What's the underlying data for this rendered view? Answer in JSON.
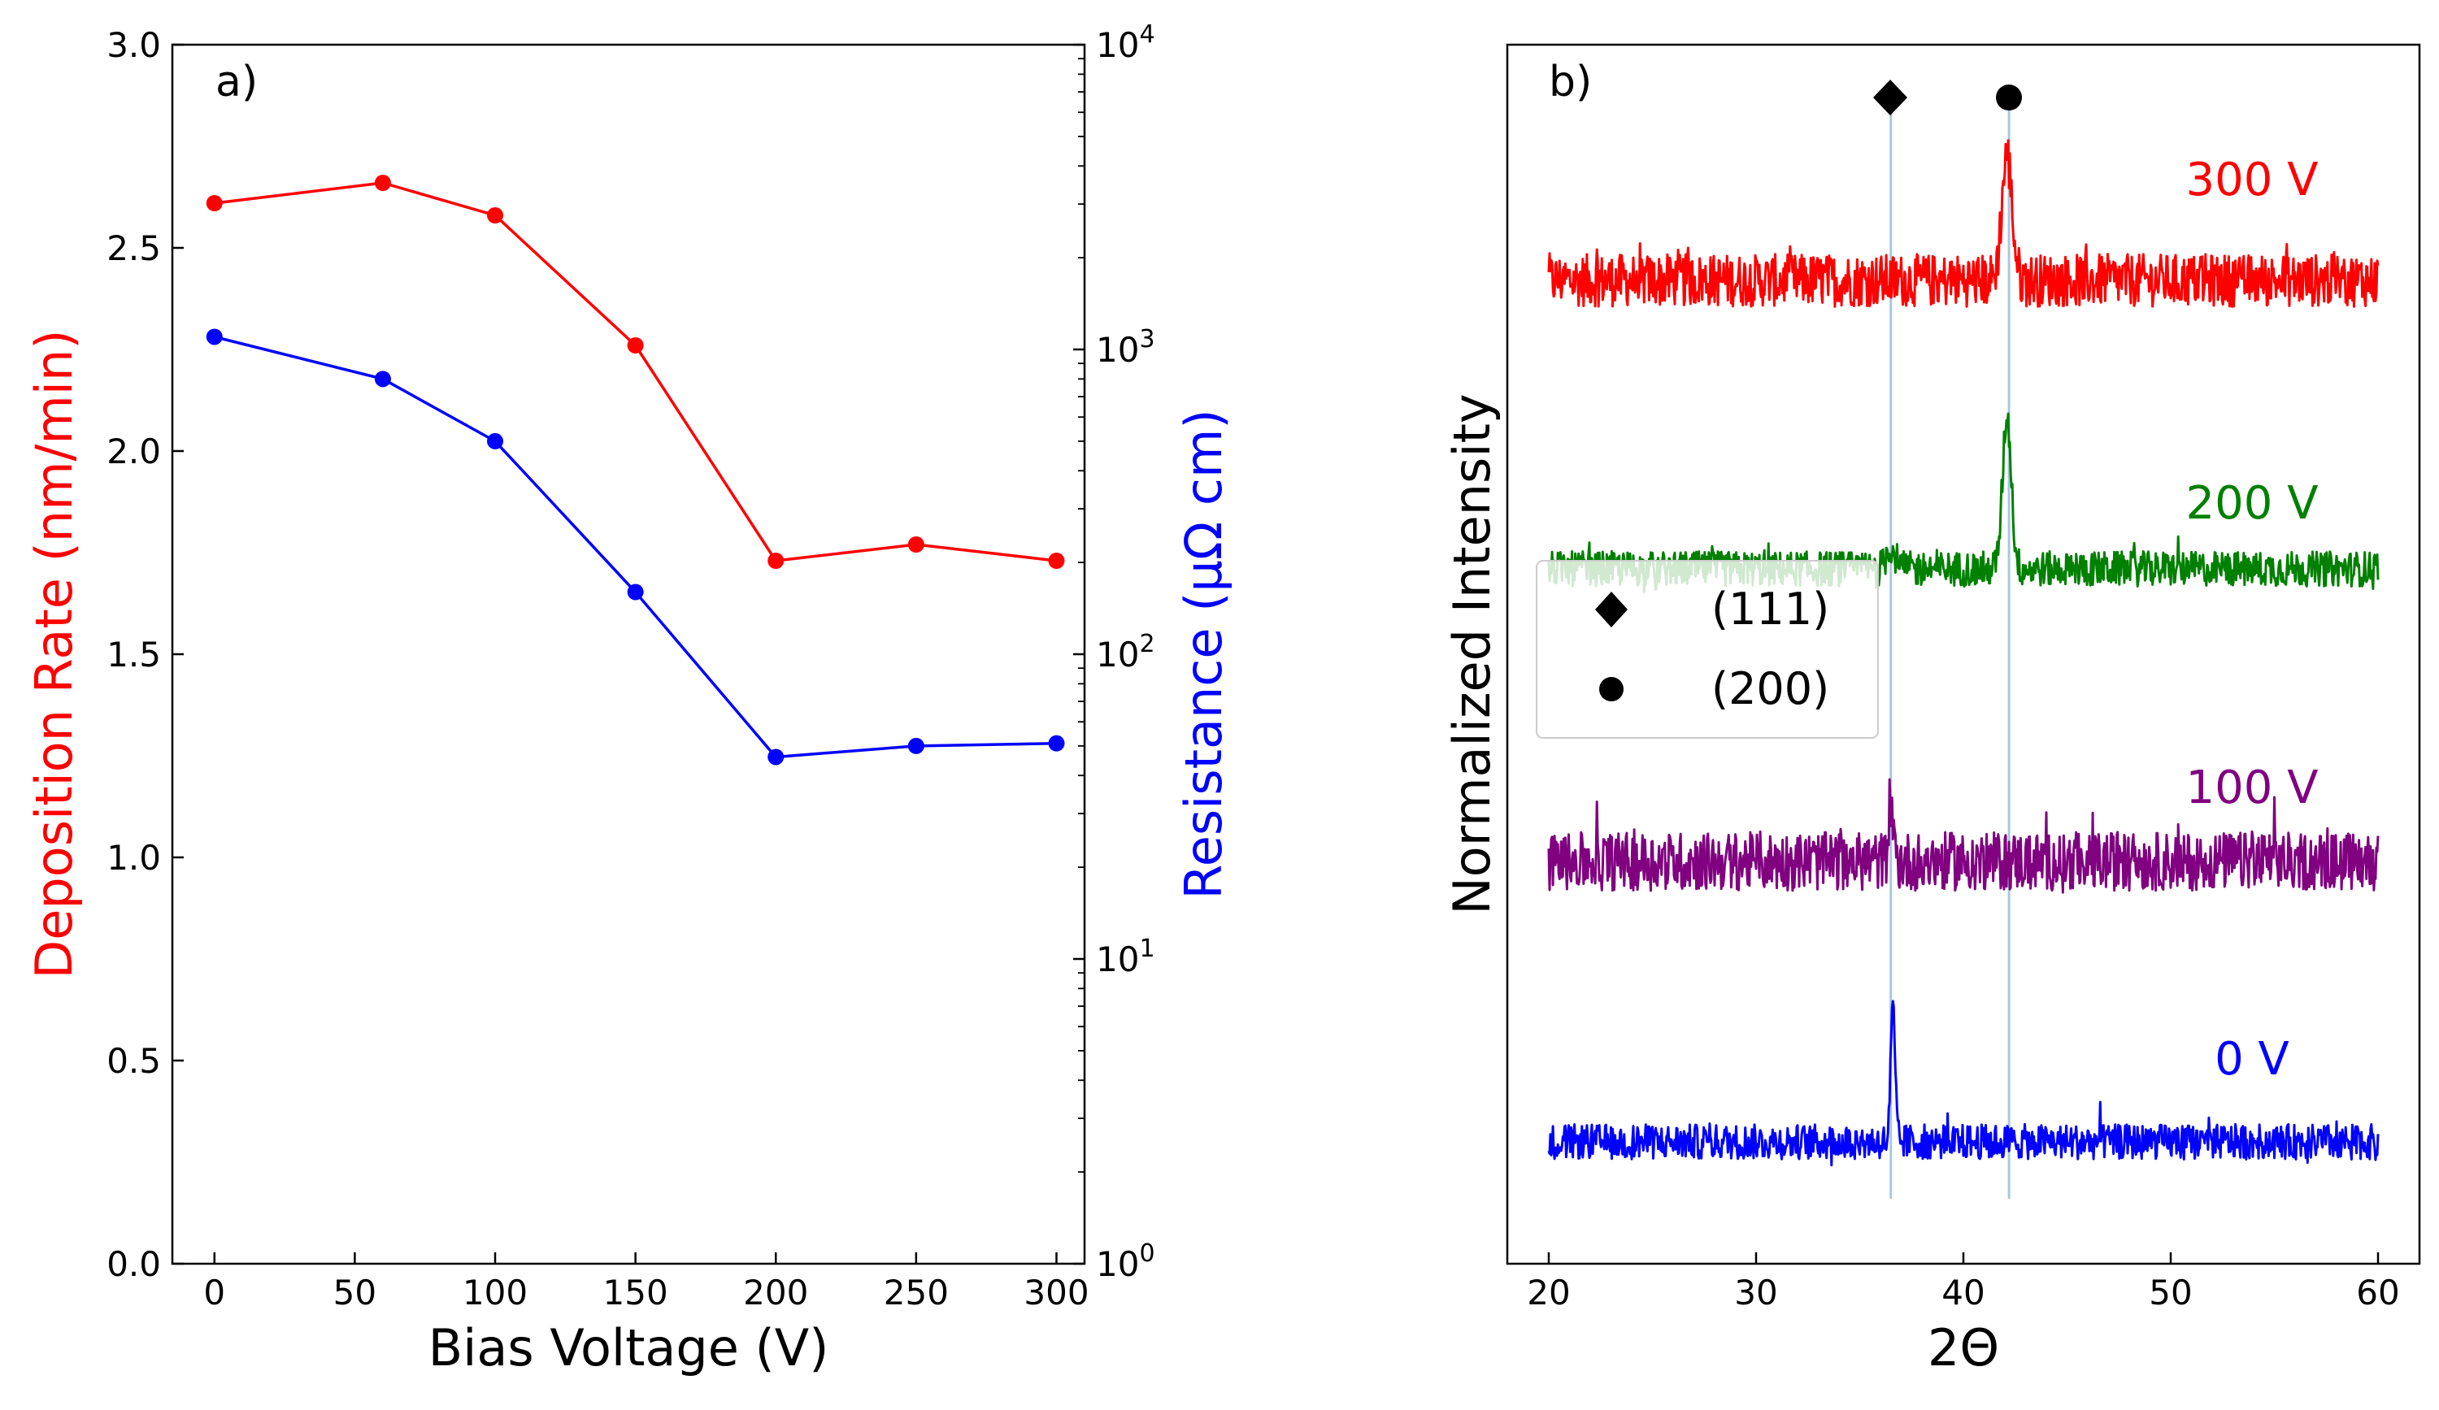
{
  "chart_data": [
    {
      "panel": "a)",
      "type": "line",
      "xlabel": "Bias Voltage (V)",
      "x": [
        0,
        60,
        100,
        150,
        200,
        250,
        300
      ],
      "xlim": [
        -15,
        310
      ],
      "xticks": [
        "0",
        "50",
        "100",
        "150",
        "200",
        "250",
        "300"
      ],
      "xtick_values": [
        0,
        50,
        100,
        150,
        200,
        250,
        300
      ],
      "left_axis": {
        "label": "Deposition Rate (nm/min)",
        "color": "#ff0000",
        "ylim": [
          0.0,
          3.0
        ],
        "ticks": [
          "0.0",
          "0.5",
          "1.0",
          "1.5",
          "2.0",
          "2.5",
          "3.0"
        ],
        "tick_values": [
          0.0,
          0.5,
          1.0,
          1.5,
          2.0,
          2.5,
          3.0
        ]
      },
      "right_axis": {
        "label": "Resistance (µΩ cm)",
        "color": "#0000ff",
        "scale": "log",
        "ylim": [
          1,
          10000
        ],
        "ticks": [
          {
            "base": "10",
            "exp": "0",
            "value": 1
          },
          {
            "base": "10",
            "exp": "1",
            "value": 10
          },
          {
            "base": "10",
            "exp": "2",
            "value": 100
          },
          {
            "base": "10",
            "exp": "3",
            "value": 1000
          },
          {
            "base": "10",
            "exp": "4",
            "value": 10000
          }
        ]
      },
      "series": [
        {
          "name": "Deposition Rate",
          "axis": "left",
          "color": "#ff0000",
          "values": [
            2.61,
            2.66,
            2.58,
            2.26,
            1.73,
            1.77,
            1.73
          ]
        },
        {
          "name": "Resistance",
          "axis": "right",
          "color": "#0000ff",
          "values": [
            1100,
            800,
            500,
            160,
            46,
            50,
            51
          ]
        }
      ]
    },
    {
      "panel": "b)",
      "type": "line",
      "xlabel": "2Θ",
      "ylabel": "Normalized Intensity",
      "xlim": [
        18,
        62
      ],
      "xticks": [
        "20",
        "30",
        "40",
        "50",
        "60"
      ],
      "xtick_values": [
        20,
        30,
        40,
        50,
        60
      ],
      "reference_lines": [
        {
          "x": 36.5,
          "marker": "diamond",
          "label": "(111)"
        },
        {
          "x": 42.2,
          "marker": "circle",
          "label": "(200)"
        }
      ],
      "legend": {
        "position": "center-left",
        "entries": [
          {
            "marker": "diamond",
            "label": "(111)"
          },
          {
            "marker": "circle",
            "label": "(200)"
          }
        ]
      },
      "series": [
        {
          "name": "300 V",
          "color": "#ff0000",
          "offset": 3.0,
          "noise": 0.18,
          "peaks": [
            {
              "x": 42.1,
              "height": 0.85,
              "width": 0.35
            }
          ]
        },
        {
          "name": "200 V",
          "color": "#008000",
          "offset": 2.0,
          "noise": 0.12,
          "peaks": [
            {
              "x": 42.1,
              "height": 1.05,
              "width": 0.3
            },
            {
              "x": 36.5,
              "height": 0.15,
              "width": 0.3
            }
          ]
        },
        {
          "name": "100 V",
          "color": "#800080",
          "offset": 1.0,
          "noise": 0.2,
          "peaks": [
            {
              "x": 36.5,
              "height": 0.45,
              "width": 0.15
            }
          ]
        },
        {
          "name": "0 V",
          "color": "#0000ff",
          "offset": 0.0,
          "noise": 0.12,
          "peaks": [
            {
              "x": 36.6,
              "height": 0.9,
              "width": 0.15
            }
          ]
        }
      ]
    }
  ]
}
